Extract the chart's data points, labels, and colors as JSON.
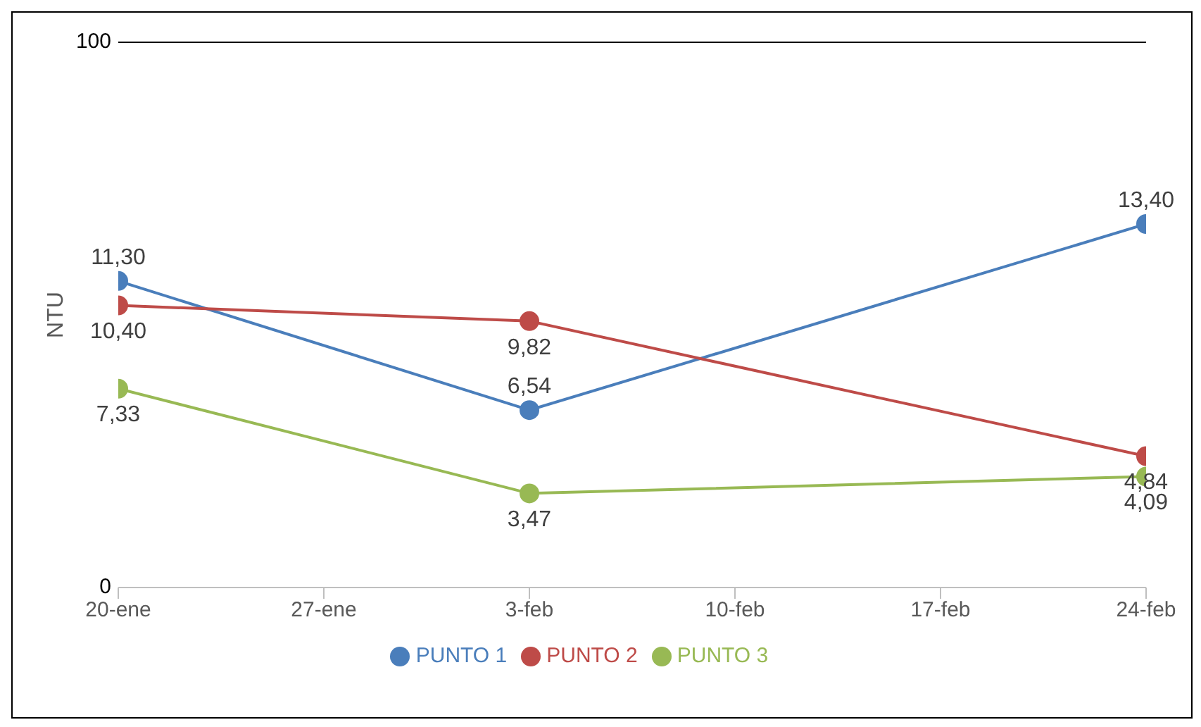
{
  "chart_data": {
    "type": "line",
    "ylabel": "NTU",
    "x": [
      "--01-20",
      "--02-03",
      "--02-24"
    ],
    "xlim": [
      "--01-20",
      "--02-24"
    ],
    "xticks": [
      {
        "value": "--01-20",
        "label": "20-ene"
      },
      {
        "value": "--01-27",
        "label": "27-ene"
      },
      {
        "value": "--02-03",
        "label": "3-feb"
      },
      {
        "value": "--02-10",
        "label": "10-feb"
      },
      {
        "value": "--02-17",
        "label": "17-feb"
      },
      {
        "value": "--02-24",
        "label": "24-feb"
      }
    ],
    "annotations": [
      "100",
      "0"
    ],
    "legend": "bottom",
    "marker": "circle",
    "line_style": "solid",
    "series": [
      {
        "name": "PUNTO 1",
        "color": "#4a7ebb",
        "values": [
          11.3,
          6.54,
          13.4
        ],
        "value_labels": [
          "11,30",
          "6,54",
          "13,40"
        ]
      },
      {
        "name": "PUNTO 2",
        "color": "#be4b48",
        "values": [
          10.4,
          9.82,
          4.84
        ],
        "value_labels": [
          "10,40",
          "9,82",
          "4,84"
        ]
      },
      {
        "name": "PUNTO 3",
        "color": "#98b954",
        "values": [
          7.33,
          3.47,
          4.09
        ],
        "value_labels": [
          "7,33",
          "3,47",
          "4,09"
        ]
      }
    ]
  }
}
